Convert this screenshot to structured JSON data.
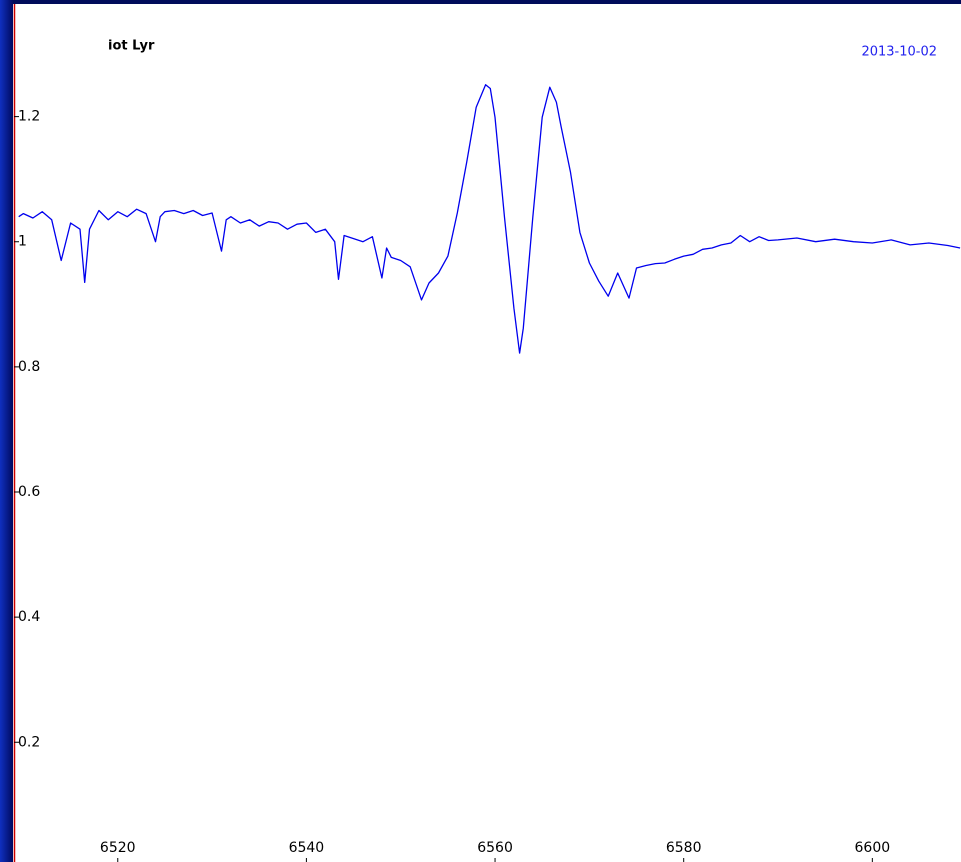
{
  "chart_data": {
    "type": "line",
    "title": "iot Lyr",
    "subtitle": "2013-10-02",
    "x": [
      6509.5,
      6510,
      6511,
      6512,
      6513,
      6514,
      6515,
      6516,
      6516.5,
      6517,
      6518,
      6519,
      6520,
      6521,
      6522,
      6523,
      6524,
      6524.5,
      6525,
      6526,
      6527,
      6528,
      6529,
      6530,
      6531,
      6531.5,
      6532,
      6533,
      6534,
      6535,
      6536,
      6537,
      6538,
      6539,
      6540,
      6541,
      6542,
      6543,
      6543.4,
      6544,
      6545,
      6546,
      6547,
      6548,
      6548.5,
      6549,
      6550,
      6551,
      6552.2,
      6553,
      6554,
      6555,
      6556,
      6557,
      6558,
      6559,
      6559.5,
      6560,
      6561,
      6562,
      6562.6,
      6563,
      6564,
      6565,
      6565.8,
      6566.5,
      6567,
      6568,
      6569,
      6570,
      6571,
      6572,
      6573,
      6574.2,
      6575,
      6576,
      6577,
      6578,
      6579,
      6580,
      6581,
      6582,
      6583,
      6584,
      6585,
      6586,
      6587,
      6588,
      6589,
      6590,
      6592,
      6594,
      6596,
      6598,
      6600,
      6602,
      6604,
      6606,
      6608,
      6609.3
    ],
    "series": [
      {
        "name": "iot Lyr",
        "color": "#0000ee",
        "values": [
          1.04,
          1.045,
          1.038,
          1.048,
          1.035,
          0.97,
          1.03,
          1.02,
          0.935,
          1.02,
          1.05,
          1.035,
          1.048,
          1.04,
          1.052,
          1.045,
          1.0,
          1.04,
          1.048,
          1.05,
          1.045,
          1.05,
          1.042,
          1.046,
          0.985,
          1.035,
          1.04,
          1.03,
          1.035,
          1.025,
          1.032,
          1.03,
          1.02,
          1.028,
          1.03,
          1.015,
          1.02,
          1.0,
          0.94,
          1.01,
          1.005,
          1.0,
          1.008,
          0.942,
          0.99,
          0.975,
          0.97,
          0.96,
          0.907,
          0.934,
          0.95,
          0.977,
          1.046,
          1.127,
          1.215,
          1.251,
          1.245,
          1.199,
          1.039,
          0.894,
          0.822,
          0.862,
          1.039,
          1.199,
          1.247,
          1.223,
          1.184,
          1.111,
          1.015,
          0.966,
          0.937,
          0.913,
          0.95,
          0.91,
          0.958,
          0.962,
          0.965,
          0.966,
          0.972,
          0.977,
          0.98,
          0.988,
          0.99,
          0.995,
          0.998,
          1.01,
          1.0,
          1.008,
          1.002,
          1.003,
          1.006,
          1.0,
          1.004,
          1.0,
          0.998,
          1.003,
          0.995,
          0.998,
          0.994,
          0.99
        ]
      }
    ],
    "xlim": [
      6509,
      6609.4
    ],
    "xticks": [
      6520,
      6540,
      6560,
      6580,
      6600
    ],
    "ylim": [
      0.015,
      1.38
    ],
    "yticks": [
      0.2,
      0.4,
      0.6,
      0.8,
      1,
      1.2
    ],
    "grid": false
  }
}
